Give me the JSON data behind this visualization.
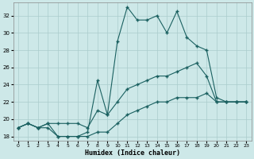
{
  "xlabel": "Humidex (Indice chaleur)",
  "background_color": "#cde8e8",
  "grid_color": "#aacccc",
  "line_color": "#1a6060",
  "xlim": [
    -0.5,
    23.5
  ],
  "ylim": [
    17.5,
    33.5
  ],
  "yticks": [
    18,
    20,
    22,
    24,
    26,
    28,
    30,
    32
  ],
  "xticks": [
    0,
    1,
    2,
    3,
    4,
    5,
    6,
    7,
    8,
    9,
    10,
    11,
    12,
    13,
    14,
    15,
    16,
    17,
    18,
    19,
    20,
    21,
    22,
    23
  ],
  "series1_x": [
    0,
    1,
    2,
    3,
    4,
    5,
    6,
    7,
    8,
    9,
    10,
    11,
    12,
    13,
    14,
    15,
    16,
    17,
    18,
    19,
    20,
    21,
    22,
    23
  ],
  "series1_y": [
    19.0,
    19.5,
    19.0,
    19.0,
    18.0,
    18.0,
    18.0,
    18.0,
    18.5,
    18.5,
    19.5,
    20.5,
    21.0,
    21.5,
    22.0,
    22.0,
    22.5,
    22.5,
    22.5,
    23.0,
    22.0,
    22.0,
    22.0,
    22.0
  ],
  "series2_x": [
    0,
    1,
    2,
    3,
    4,
    5,
    6,
    7,
    8,
    9,
    10,
    11,
    12,
    13,
    14,
    15,
    16,
    17,
    18,
    19,
    20,
    21,
    22,
    23
  ],
  "series2_y": [
    19.0,
    19.5,
    19.0,
    19.5,
    19.5,
    19.5,
    19.5,
    19.0,
    21.0,
    20.5,
    22.0,
    23.5,
    24.0,
    24.5,
    25.0,
    25.0,
    25.5,
    26.0,
    26.5,
    25.0,
    22.0,
    22.0,
    22.0,
    22.0
  ],
  "series3_x": [
    0,
    1,
    2,
    3,
    4,
    5,
    6,
    7,
    8,
    9,
    10,
    11,
    12,
    13,
    14,
    15,
    16,
    17,
    18,
    19,
    20,
    21,
    22,
    23
  ],
  "series3_y": [
    19.0,
    19.5,
    19.0,
    19.5,
    18.0,
    18.0,
    18.0,
    18.5,
    24.5,
    20.5,
    29.0,
    33.0,
    31.5,
    31.5,
    32.0,
    30.0,
    32.5,
    29.5,
    28.5,
    28.0,
    22.5,
    22.0,
    22.0,
    22.0
  ],
  "marker_size": 2.0,
  "line_width": 0.8
}
